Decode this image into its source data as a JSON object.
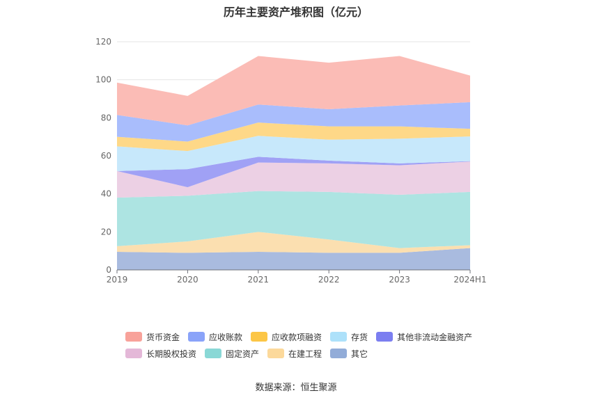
{
  "chart_data": {
    "type": "area",
    "stacked": true,
    "title": "历年主要资产堆积图（亿元）",
    "categories": [
      "2019",
      "2020",
      "2021",
      "2022",
      "2023",
      "2024H1"
    ],
    "ylim": [
      0,
      120
    ],
    "yticks": [
      0,
      20,
      40,
      60,
      80,
      100,
      120
    ],
    "series": [
      {
        "name": "其它",
        "color": "#a9bbdf",
        "values": [
          9.5,
          9,
          9.5,
          9,
          9,
          11.5
        ]
      },
      {
        "name": "在建工程",
        "color": "#fbdfb0",
        "values": [
          3,
          6,
          10.5,
          7,
          2.5,
          1.5
        ]
      },
      {
        "name": "固定资产",
        "color": "#ade4e2",
        "values": [
          25.5,
          24,
          21.5,
          25,
          28,
          28
        ]
      },
      {
        "name": "长期股权投资",
        "color": "#ecd0e4",
        "values": [
          14,
          4.5,
          15,
          15,
          15.5,
          16
        ]
      },
      {
        "name": "其他非流动金融资产",
        "color": "#a0a1f5",
        "values": [
          0,
          9.5,
          3,
          1.5,
          1,
          0.2
        ]
      },
      {
        "name": "存货",
        "color": "#c7e8fb",
        "values": [
          13,
          9.5,
          11,
          11,
          13,
          13
        ]
      },
      {
        "name": "应收款项融资",
        "color": "#fed888",
        "values": [
          5,
          5,
          7,
          7,
          6.5,
          4
        ]
      },
      {
        "name": "应收账款",
        "color": "#a9bdfc",
        "values": [
          11.5,
          8.5,
          9.5,
          9,
          11,
          14
        ]
      },
      {
        "name": "货币资金",
        "color": "#fbbcb6",
        "values": [
          17,
          15.5,
          25.5,
          24.5,
          26,
          14
        ]
      }
    ]
  },
  "legend": {
    "row1": [
      {
        "label": "货币资金",
        "color": "#f8a29a"
      },
      {
        "label": "应收账款",
        "color": "#8aa3f9"
      },
      {
        "label": "应收款项融资",
        "color": "#fcc646"
      },
      {
        "label": "存货",
        "color": "#ade1fa"
      },
      {
        "label": "其他非流动金融资产",
        "color": "#7b7ef0"
      }
    ],
    "row2": [
      {
        "label": "长期股权投资",
        "color": "#e4b8d8"
      },
      {
        "label": "固定资产",
        "color": "#8ad8d6"
      },
      {
        "label": "在建工程",
        "color": "#fcd99b"
      },
      {
        "label": "其它",
        "color": "#92acd8"
      }
    ]
  },
  "source": "数据来源：恒生聚源"
}
